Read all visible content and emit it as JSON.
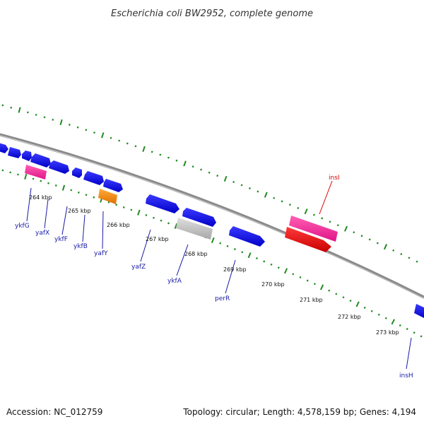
{
  "title": "Escherichia coli BW2952, complete genome",
  "footer": {
    "accession": "Accession: NC_012759",
    "summary": "Topology: circular; Length: 4,578,159 bp; Genes: 4,194"
  },
  "colors": {
    "cds": "#1010e8",
    "pseudo": "#ff3aa0",
    "rna": "#ff8c00",
    "gray": "#c2c2c2",
    "red": "#ee1111",
    "backbone": "#8a8a8a",
    "tick": "#228b22",
    "label": "#1a1aa6",
    "label_red": "#dd0000"
  },
  "kbp_ticks": [
    "264 kbp",
    "265 kbp",
    "266 kbp",
    "267 kbp",
    "268 kbp",
    "269 kbp",
    "270 kbp",
    "271 kbp",
    "272 kbp",
    "273 kbp"
  ],
  "gene_labels": [
    "ykfG",
    "yafX",
    "ykfF",
    "ykfB",
    "yafY",
    "yafZ",
    "ykfA",
    "perR",
    "insI",
    "insH"
  ]
}
